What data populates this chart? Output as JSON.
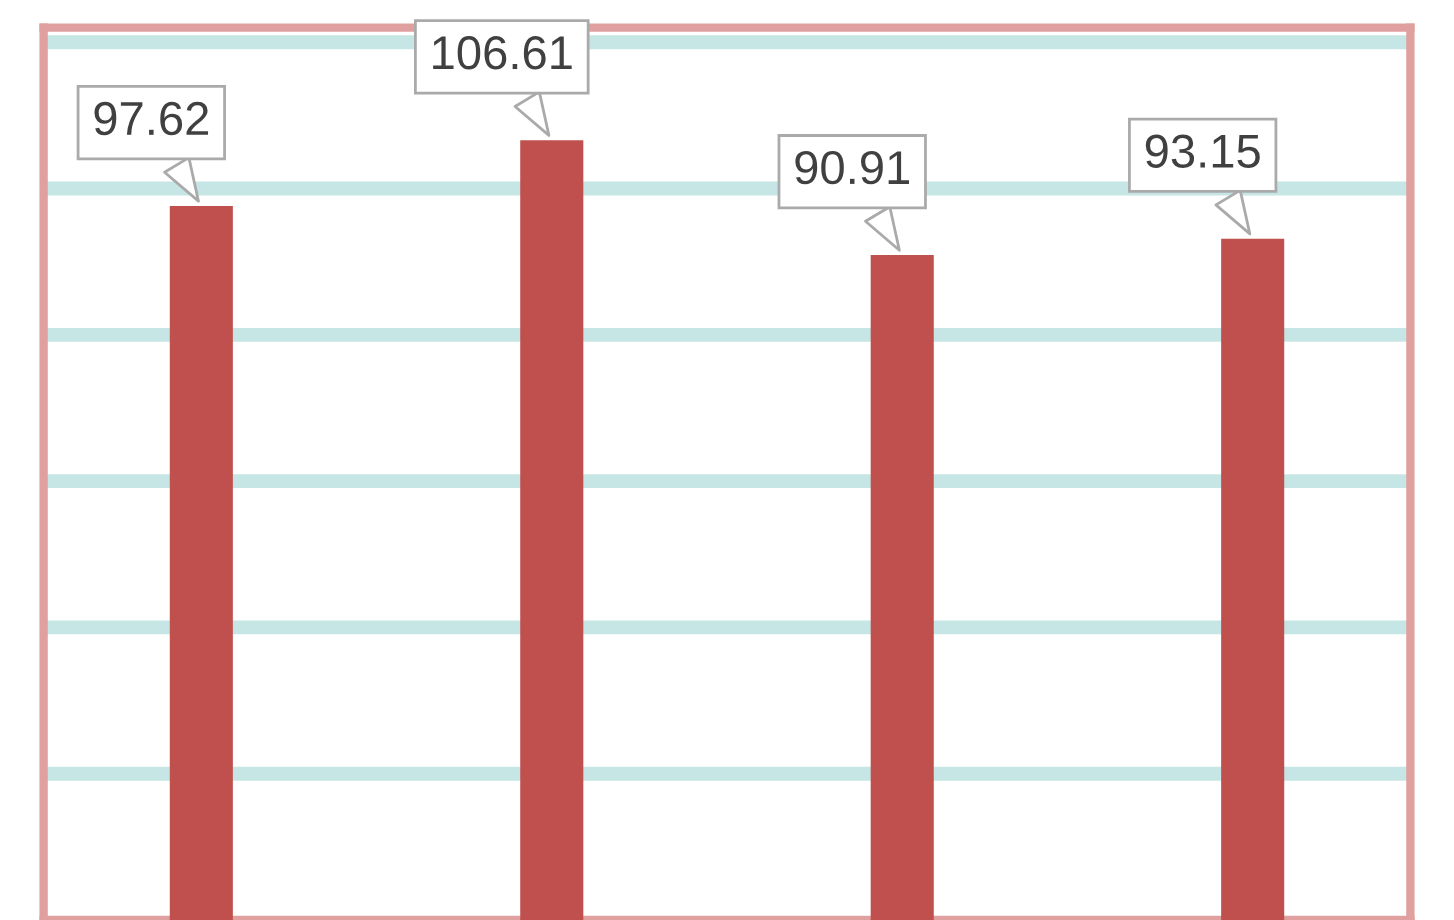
{
  "chart_data": {
    "type": "bar",
    "categories": [
      null,
      null,
      null,
      null
    ],
    "values": [
      97.62,
      106.61,
      90.91,
      93.15
    ],
    "color": "#c0504d",
    "data_labels": true,
    "ylim": [
      0,
      122
    ],
    "yticks": [
      {
        "value": 20,
        "label": null
      },
      {
        "value": 40,
        "label": null
      },
      {
        "value": 60,
        "label": null
      },
      {
        "value": 80,
        "label": null
      },
      {
        "value": 100,
        "label": null
      },
      {
        "value": 120,
        "label": null
      }
    ],
    "grid": "y"
  }
}
